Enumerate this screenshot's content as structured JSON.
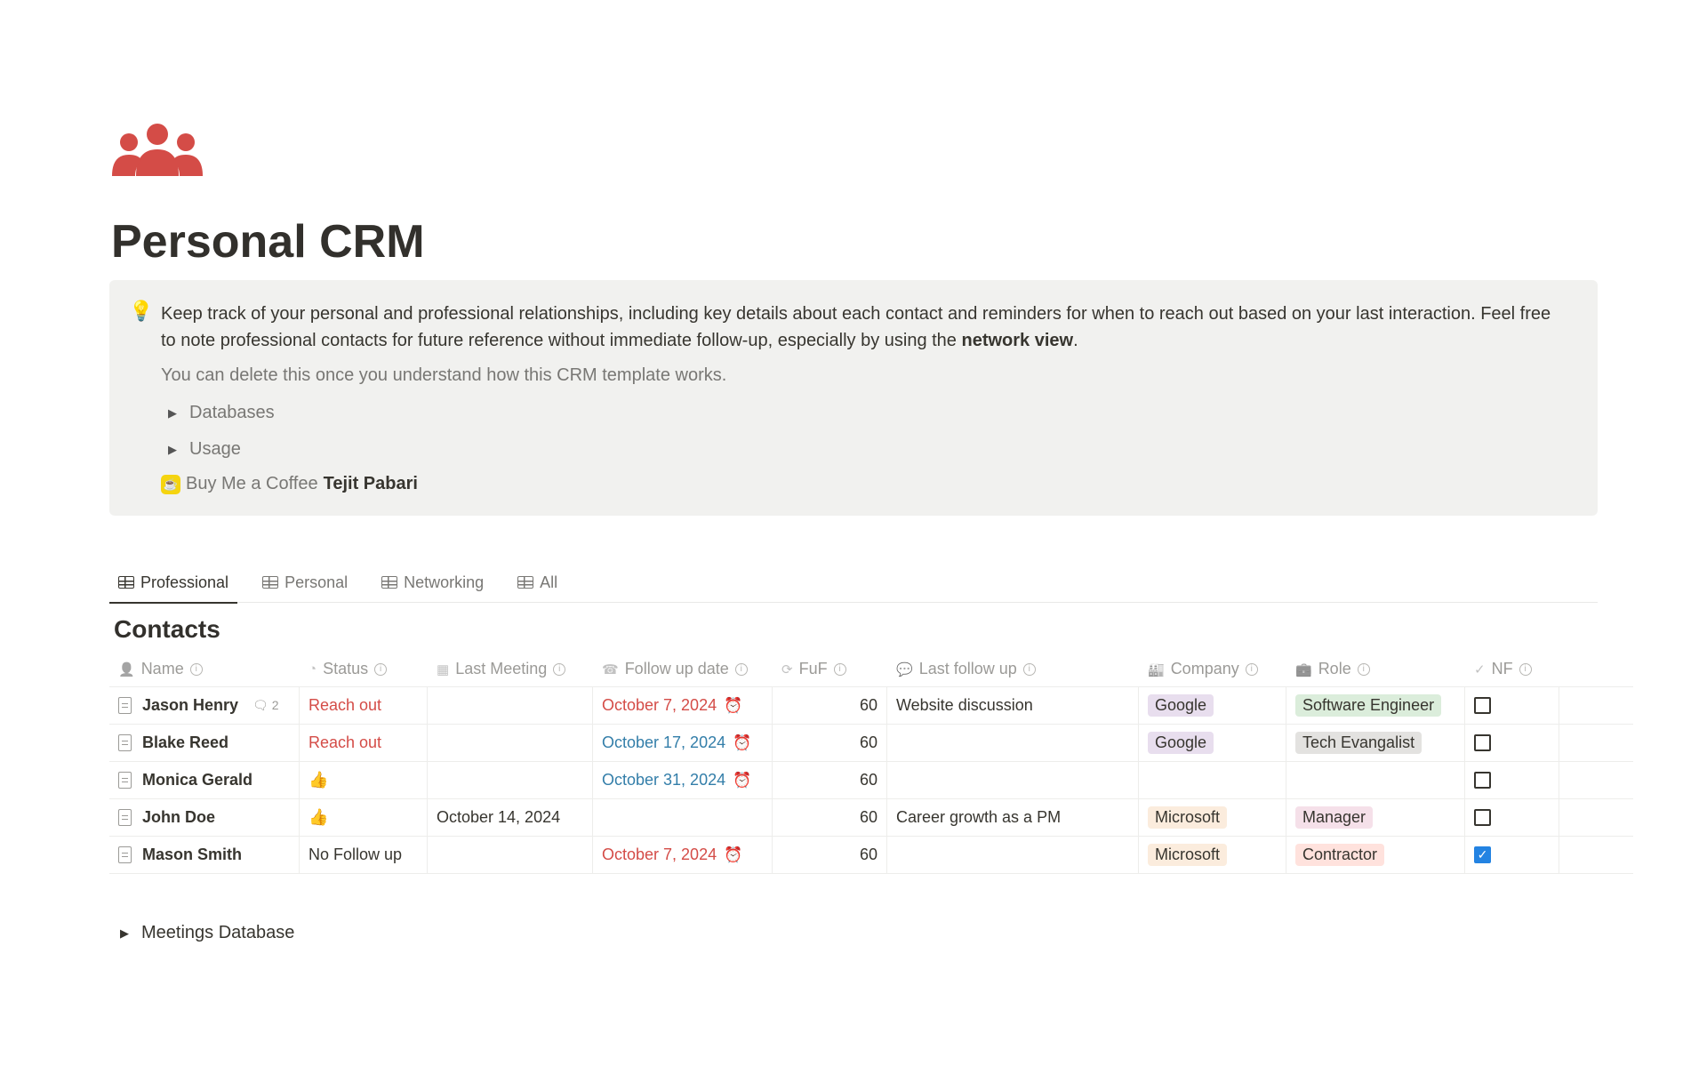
{
  "page": {
    "icon": "people-group-icon",
    "icon_color": "#d44c47",
    "title": "Personal CRM"
  },
  "callout": {
    "icon": "lightbulb-icon",
    "text_before": "Keep track of your personal and professional relationships, including key details about each contact and reminders for when to reach out based on your last interaction. Feel free to note professional contacts for future reference without immediate follow-up, especially by using the ",
    "text_bold": "network view",
    "text_after": ".",
    "note": "You can delete this once you understand how this CRM template works.",
    "toggles": [
      "Databases",
      "Usage"
    ],
    "coffee_label": "Buy Me a Coffee",
    "coffee_author": "Tejit Pabari"
  },
  "tabs": [
    {
      "label": "Professional",
      "active": true
    },
    {
      "label": "Personal"
    },
    {
      "label": "Networking"
    },
    {
      "label": "All"
    }
  ],
  "database": {
    "title": "Contacts",
    "columns": [
      {
        "label": "Name",
        "icon": "person-icon"
      },
      {
        "label": "Status",
        "icon": "status-icon"
      },
      {
        "label": "Last Meeting",
        "icon": "calendar-icon"
      },
      {
        "label": "Follow up date",
        "icon": "phone-icon"
      },
      {
        "label": "FuF",
        "icon": "search-refresh-icon"
      },
      {
        "label": "Last follow up",
        "icon": "chat-icon"
      },
      {
        "label": "Company",
        "icon": "factory-icon"
      },
      {
        "label": "Role",
        "icon": "briefcase-icon"
      },
      {
        "label": "NF",
        "icon": "person-check-icon"
      }
    ],
    "rows": [
      {
        "name": "Jason Henry",
        "comments": "2",
        "status": "Reach out",
        "last_meeting": "",
        "follow_up": "October 7, 2024",
        "follow_up_color": "red",
        "fuf": "60",
        "last_follow_up": "Website discussion",
        "company": "Google",
        "company_color": "#e8deee",
        "role": "Software Engineer",
        "role_color": "#dbeddb",
        "nf": false
      },
      {
        "name": "Blake Reed",
        "comments": "",
        "status": "Reach out",
        "last_meeting": "",
        "follow_up": "October 17, 2024",
        "follow_up_color": "blue",
        "fuf": "60",
        "last_follow_up": "",
        "company": "Google",
        "company_color": "#e8deee",
        "role": "Tech Evangalist",
        "role_color": "#e3e2e0",
        "nf": false
      },
      {
        "name": "Monica Gerald",
        "comments": "",
        "status": "👍",
        "last_meeting": "",
        "follow_up": "October 31, 2024",
        "follow_up_color": "blue",
        "fuf": "60",
        "last_follow_up": "",
        "company": "",
        "company_color": "",
        "role": "",
        "role_color": "",
        "nf": false
      },
      {
        "name": "John Doe",
        "comments": "",
        "status": "👍",
        "last_meeting": "October 14, 2024",
        "follow_up": "",
        "follow_up_color": "",
        "fuf": "60",
        "last_follow_up": "Career growth as a PM",
        "company": "Microsoft",
        "company_color": "#fbecdd",
        "role": "Manager",
        "role_color": "#f5e0e9",
        "nf": false
      },
      {
        "name": "Mason Smith",
        "comments": "",
        "status": "No Follow up",
        "last_meeting": "",
        "follow_up": "October 7, 2024",
        "follow_up_color": "red",
        "fuf": "60",
        "last_follow_up": "",
        "company": "Microsoft",
        "company_color": "#fbecdd",
        "role": "Contractor",
        "role_color": "#ffe2dd",
        "nf": true
      }
    ]
  },
  "meetings_toggle": "Meetings Database"
}
